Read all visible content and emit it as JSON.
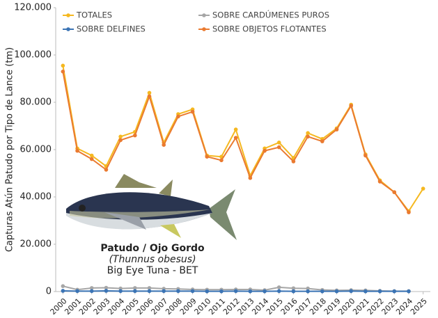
{
  "chart_data": {
    "type": "line",
    "y_label": "Capturas Atún Patudo por Tipo de Lance (tm)",
    "annotations": [
      "Patudo / Ojo Gordo",
      "(Thunnus obesus)",
      "Big Eye Tuna - BET"
    ],
    "categories": [
      "2000",
      "2001",
      "2002",
      "2003",
      "2004",
      "2005",
      "2006",
      "2007",
      "2008",
      "2009",
      "2010",
      "2011",
      "2012",
      "2013",
      "2014",
      "2015",
      "2016",
      "2017",
      "2018",
      "2019",
      "2020",
      "2021",
      "2022",
      "2023",
      "2024",
      "2025"
    ],
    "series": [
      {
        "name": "TOTALES",
        "color": "#f5b820",
        "values": [
          95500,
          60500,
          57500,
          53000,
          65500,
          67500,
          84000,
          63000,
          75000,
          77000,
          57500,
          57000,
          68500,
          49000,
          60500,
          63000,
          56500,
          67000,
          64500,
          69000,
          79000,
          58000,
          47000,
          42000,
          34000,
          43500
        ]
      },
      {
        "name": "SOBRE CARDÚMENES PUROS",
        "color": "#a6a6a6",
        "values": [
          2300,
          800,
          1500,
          1600,
          1300,
          1500,
          1500,
          1200,
          1100,
          900,
          800,
          800,
          900,
          900,
          600,
          1800,
          1400,
          1300,
          700,
          500,
          600,
          500,
          300,
          200,
          200,
          null
        ]
      },
      {
        "name": "SOBRE DELFINES",
        "color": "#3b74b5",
        "values": [
          300,
          200,
          200,
          300,
          200,
          200,
          200,
          200,
          200,
          200,
          100,
          100,
          200,
          100,
          100,
          200,
          100,
          100,
          100,
          100,
          200,
          100,
          100,
          100,
          100,
          null
        ]
      },
      {
        "name": "SOBRE OBJETOS FLOTANTES",
        "color": "#ea7a30",
        "values": [
          93000,
          59500,
          56000,
          51500,
          64000,
          66000,
          82500,
          62000,
          74000,
          76000,
          57000,
          55500,
          65000,
          48000,
          59500,
          61000,
          55000,
          65500,
          63500,
          68500,
          78500,
          57500,
          46500,
          42000,
          33500,
          null
        ]
      }
    ],
    "ylim": [
      0,
      120000
    ],
    "yticks": [
      0,
      {
        "value": 20000,
        "label": "20.000"
      },
      {
        "value": 40000,
        "label": "40.000"
      },
      {
        "value": 60000,
        "label": "60.000"
      },
      {
        "value": 80000,
        "label": "80.000"
      },
      {
        "value": 100000,
        "label": "100.000"
      },
      {
        "value": 120000,
        "label": "120.000"
      }
    ]
  }
}
